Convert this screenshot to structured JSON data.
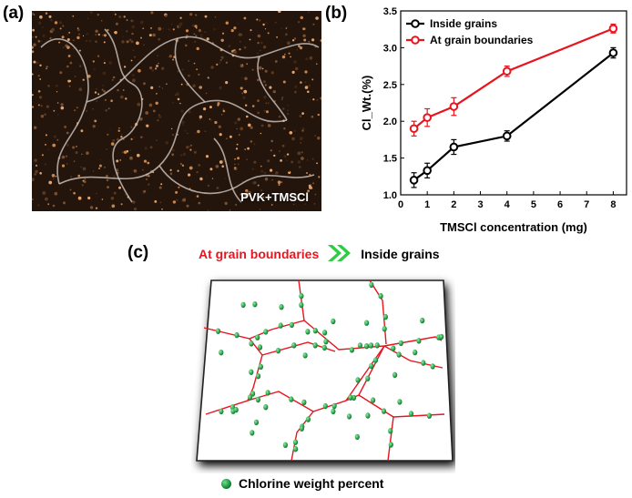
{
  "panels": {
    "a": {
      "label": "(a)",
      "caption": "PVK+TMSCl"
    },
    "b": {
      "label": "(b)"
    },
    "c": {
      "label": "(c)",
      "left_text": "At grain boundaries",
      "right_text": "Inside grains",
      "legend": "Chlorine weight percent"
    }
  },
  "colors": {
    "red": "#e8141e",
    "black": "#000000",
    "green": "#1a9a3a",
    "arrow": "#2ecc40"
  },
  "chart_data": {
    "type": "line",
    "xlabel": "TMSCl concentration (mg)",
    "ylabel": "Cl_Wt.(%)",
    "xlim": [
      0,
      8.5
    ],
    "ylim": [
      1.0,
      3.5
    ],
    "xticks": [
      0,
      1,
      2,
      3,
      4,
      5,
      6,
      7,
      8
    ],
    "yticks": [
      1.0,
      1.5,
      2.0,
      2.5,
      3.0,
      3.5
    ],
    "legend_position": "top-left",
    "series": [
      {
        "name": "Inside grains",
        "color": "#000000",
        "x": [
          0.5,
          1,
          2,
          4,
          8
        ],
        "y": [
          1.2,
          1.33,
          1.65,
          1.8,
          2.93
        ],
        "err": [
          0.1,
          0.1,
          0.1,
          0.07,
          0.07
        ]
      },
      {
        "name": "At grain boundaries",
        "color": "#e8141e",
        "x": [
          0.5,
          1,
          2,
          4,
          8
        ],
        "y": [
          1.9,
          2.05,
          2.2,
          2.68,
          3.26
        ],
        "err": [
          0.1,
          0.12,
          0.12,
          0.07,
          0.06
        ]
      }
    ]
  }
}
